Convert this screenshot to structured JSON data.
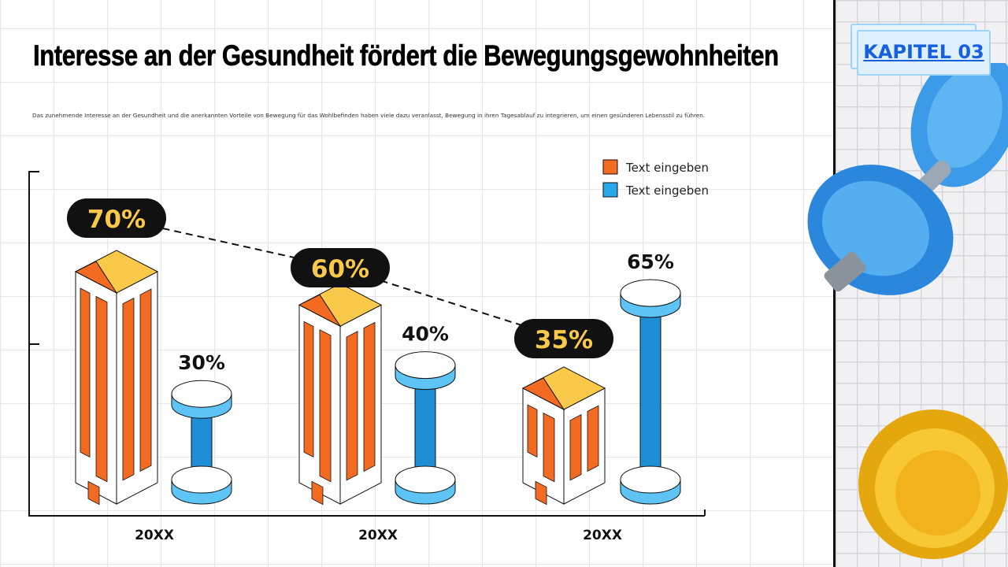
{
  "header": {
    "title": "Interesse an der Gesundheit fördert die Bewegungsgewohnheiten",
    "description": "Das zunehmende Interesse an der Gesundheit und die anerkannten Vorteile von Bewegung für das Wohlbefinden haben viele dazu veranlasst, Bewegung in ihren Tagesablauf zu integrieren, um einen gesünderen Lebensstil zu führen."
  },
  "sidebar": {
    "chapter_label": "KAPITEL 03"
  },
  "colors": {
    "orange": "#f26b21",
    "yellow": "#fbc94a",
    "blue": "#1e8fd6",
    "light_blue": "#5ec4f5",
    "pill": "#111111",
    "pill_text": "#fbc94a"
  },
  "chart_data": {
    "type": "bar",
    "categories": [
      "20XX",
      "20XX",
      "20XX"
    ],
    "series": [
      {
        "name": "Text eingeben",
        "color": "#f26b21",
        "values": [
          70,
          60,
          35
        ],
        "labels": [
          "70%",
          "60%",
          "35%"
        ],
        "mark": "building"
      },
      {
        "name": "Text eingeben",
        "color": "#29a8ec",
        "values": [
          30,
          40,
          65
        ],
        "labels": [
          "30%",
          "40%",
          "65%"
        ],
        "mark": "dumbbell"
      }
    ],
    "legend": "top-right",
    "grid": false,
    "connector": "dashed line linking first series labels"
  }
}
